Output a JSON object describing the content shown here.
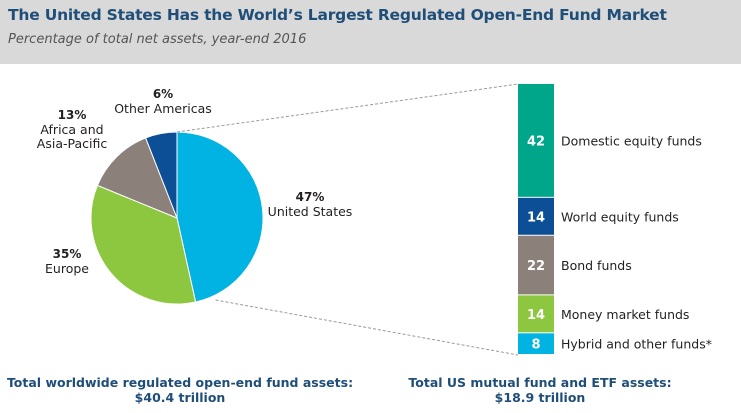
{
  "title": "The United States Has the World’s Largest Regulated Open-End Fund Market",
  "subtitle": "Percentage of total net assets, year-end 2016",
  "chart_data": [
    {
      "type": "pie",
      "slices": [
        {
          "name": "United States",
          "percent_label": "47%",
          "value": 47,
          "color": "#00b3e3"
        },
        {
          "name": "Europe",
          "percent_label": "35%",
          "value": 35,
          "color": "#8dc63f"
        },
        {
          "name": "Africa and Asia-Pacific",
          "name_lines": [
            "Africa and",
            "Asia-Pacific"
          ],
          "percent_label": "13%",
          "value": 13,
          "color": "#8b817a"
        },
        {
          "name": "Other Americas",
          "percent_label": "6%",
          "value": 6,
          "color": "#0d4f96"
        }
      ],
      "footnote": [
        "Total worldwide regulated open-end fund assets:",
        "$40.4 trillion"
      ]
    },
    {
      "type": "bar",
      "stacked": true,
      "categories": [
        "Domestic equity funds",
        "World equity funds",
        "Bond funds",
        "Money market funds",
        "Hybrid and other funds*"
      ],
      "values": [
        42,
        14,
        22,
        14,
        8
      ],
      "colors": [
        "#00a68a",
        "#0d4f96",
        "#8b817a",
        "#8dc63f",
        "#00b3e3"
      ],
      "footnote": [
        "Total US mutual fund and ETF assets:",
        "$18.9 trillion"
      ]
    }
  ]
}
